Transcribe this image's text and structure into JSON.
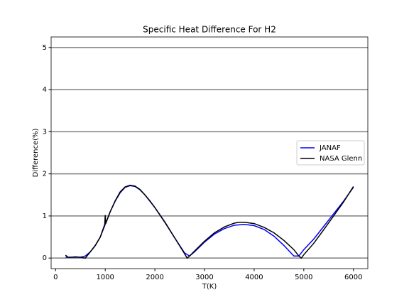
{
  "chart_data": {
    "type": "line",
    "title": "Specific Heat Difference For H2",
    "x_label": "T(K)",
    "y_label": "Difference(%)",
    "xlim": [
      -90,
      6290
    ],
    "ylim": [
      -0.25,
      5.25
    ],
    "xticks": [
      0,
      1000,
      2000,
      3000,
      4000,
      5000,
      6000
    ],
    "yticks": [
      0,
      1,
      2,
      3,
      4,
      5
    ],
    "grid": true,
    "legend": "center right",
    "series": [
      {
        "name": "JANAF",
        "color": "#0000ff",
        "x": [
          200,
          300,
          400,
          500,
          600,
          700,
          800,
          900,
          1000,
          1100,
          1200,
          1300,
          1400,
          1500,
          1600,
          1700,
          1800,
          1900,
          2000,
          2200,
          2400,
          2600,
          2700,
          2800,
          3000,
          3200,
          3400,
          3600,
          3800,
          4000,
          4200,
          4400,
          4600,
          4800,
          4900,
          5000,
          5200,
          5400,
          5600,
          5800,
          6000
        ],
        "values": [
          0.02,
          0.02,
          0.02,
          0.02,
          0.05,
          0.15,
          0.3,
          0.5,
          0.8,
          1.1,
          1.35,
          1.55,
          1.68,
          1.72,
          1.7,
          1.62,
          1.5,
          1.35,
          1.2,
          0.85,
          0.48,
          0.12,
          0.05,
          0.15,
          0.38,
          0.57,
          0.7,
          0.78,
          0.8,
          0.77,
          0.68,
          0.52,
          0.3,
          0.05,
          0.05,
          0.2,
          0.45,
          0.75,
          1.05,
          1.35,
          1.68
        ]
      },
      {
        "name": "NASA Glenn",
        "color": "#000000",
        "x": [
          200,
          250,
          300,
          400,
          500,
          600,
          700,
          800,
          900,
          990,
          1000,
          1010,
          1100,
          1200,
          1300,
          1400,
          1500,
          1600,
          1700,
          1800,
          1900,
          2000,
          2200,
          2400,
          2600,
          2650,
          2700,
          2800,
          3000,
          3200,
          3400,
          3600,
          3700,
          3800,
          4000,
          4200,
          4400,
          4600,
          4800,
          4900,
          4950,
          5000,
          5200,
          5400,
          5600,
          5800,
          6000
        ],
        "values": [
          0.07,
          0.02,
          0.02,
          0.03,
          0.02,
          0.0,
          0.15,
          0.3,
          0.5,
          0.8,
          1.02,
          0.82,
          1.1,
          1.36,
          1.57,
          1.69,
          1.73,
          1.71,
          1.63,
          1.5,
          1.36,
          1.2,
          0.86,
          0.48,
          0.1,
          0.0,
          0.05,
          0.17,
          0.4,
          0.6,
          0.74,
          0.83,
          0.85,
          0.85,
          0.82,
          0.73,
          0.6,
          0.42,
          0.2,
          0.05,
          0.0,
          0.08,
          0.35,
          0.67,
          1.0,
          1.33,
          1.7
        ]
      }
    ]
  }
}
